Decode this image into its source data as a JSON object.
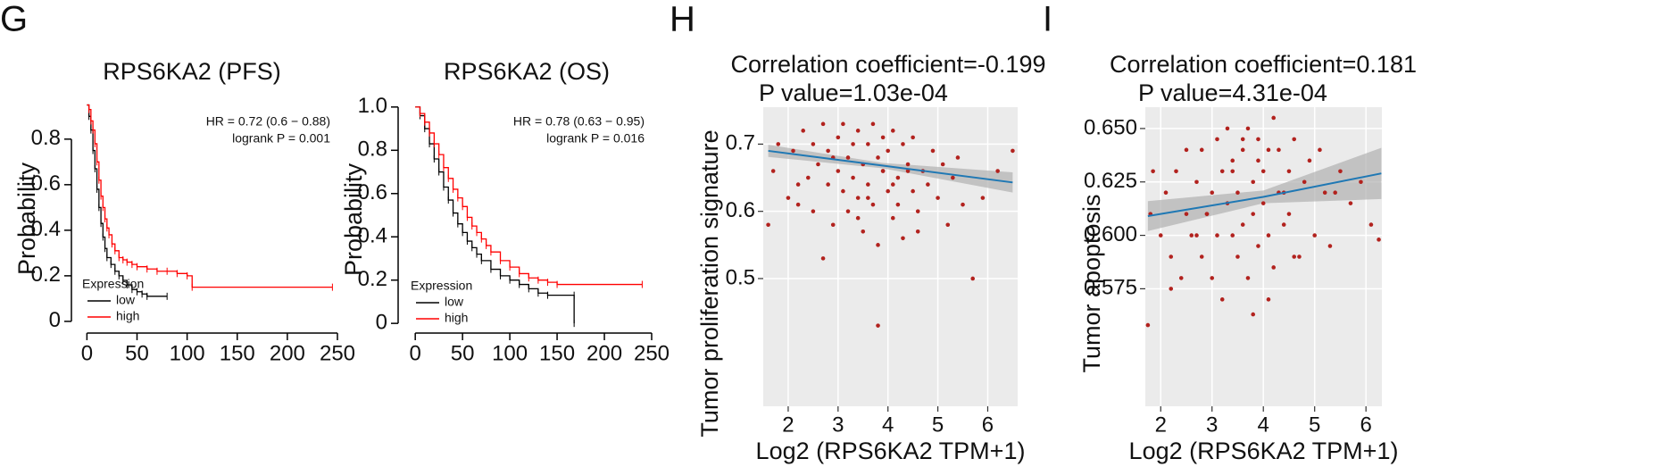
{
  "panel_labels": [
    "G",
    "H",
    "I"
  ],
  "chart_data": [
    {
      "type": "line",
      "title": "RPS6KA2 (PFS)",
      "ylabel": "Probability",
      "annotations": [
        "HR = 0.72 (0.6 − 0.88)",
        "logrank P = 0.001"
      ],
      "legend_title": "Expression",
      "series": [
        {
          "name": "low",
          "color": "#000000",
          "x": [
            0,
            2,
            4,
            6,
            8,
            10,
            12,
            14,
            16,
            18,
            20,
            24,
            28,
            32,
            36,
            40,
            45,
            50,
            55,
            60,
            80
          ],
          "values": [
            0.95,
            0.9,
            0.84,
            0.75,
            0.67,
            0.58,
            0.5,
            0.43,
            0.37,
            0.32,
            0.28,
            0.25,
            0.22,
            0.2,
            0.18,
            0.16,
            0.14,
            0.13,
            0.12,
            0.11,
            0.11
          ]
        },
        {
          "name": "high",
          "color": "#ff0000",
          "x": [
            0,
            2,
            4,
            6,
            8,
            10,
            12,
            14,
            16,
            18,
            20,
            22,
            25,
            28,
            32,
            36,
            40,
            45,
            50,
            60,
            70,
            80,
            90,
            100,
            105,
            245
          ],
          "values": [
            0.95,
            0.93,
            0.88,
            0.84,
            0.78,
            0.7,
            0.62,
            0.55,
            0.5,
            0.45,
            0.41,
            0.38,
            0.34,
            0.31,
            0.28,
            0.27,
            0.26,
            0.25,
            0.24,
            0.23,
            0.22,
            0.22,
            0.21,
            0.2,
            0.15,
            0.15
          ]
        }
      ],
      "xlim": [
        -3,
        250
      ],
      "ylim": [
        -0.02,
        0.96
      ],
      "xticks": [
        0,
        50,
        100,
        150,
        200,
        250
      ],
      "yticks": [
        0,
        0.2,
        0.4,
        0.6,
        0.8
      ]
    },
    {
      "type": "line",
      "title": "RPS6KA2 (OS)",
      "ylabel": "Probability",
      "annotations": [
        "HR = 0.78 (0.63 − 0.95)",
        "logrank P = 0.016"
      ],
      "legend_title": "Expression",
      "series": [
        {
          "name": "low",
          "color": "#000000",
          "x": [
            0,
            5,
            10,
            15,
            20,
            25,
            30,
            35,
            40,
            45,
            50,
            55,
            60,
            65,
            70,
            80,
            90,
            100,
            110,
            120,
            130,
            140,
            168,
            168
          ],
          "values": [
            1,
            0.96,
            0.9,
            0.83,
            0.76,
            0.7,
            0.63,
            0.57,
            0.51,
            0.46,
            0.42,
            0.38,
            0.35,
            0.32,
            0.29,
            0.25,
            0.22,
            0.2,
            0.18,
            0.16,
            0.14,
            0.13,
            0.13,
            0
          ]
        },
        {
          "name": "high",
          "color": "#ff0000",
          "x": [
            0,
            5,
            10,
            15,
            20,
            25,
            30,
            35,
            40,
            45,
            50,
            55,
            60,
            65,
            70,
            75,
            80,
            90,
            100,
            110,
            120,
            130,
            140,
            150,
            240
          ],
          "values": [
            1,
            0.97,
            0.93,
            0.88,
            0.83,
            0.78,
            0.72,
            0.67,
            0.62,
            0.58,
            0.54,
            0.49,
            0.45,
            0.42,
            0.39,
            0.36,
            0.33,
            0.29,
            0.26,
            0.23,
            0.21,
            0.2,
            0.19,
            0.18,
            0.18
          ]
        }
      ],
      "xlim": [
        -3,
        250
      ],
      "ylim": [
        -0.02,
        1.02
      ],
      "xticks": [
        0,
        50,
        100,
        150,
        200,
        250
      ],
      "yticks": [
        0,
        0.2,
        0.4,
        0.6,
        0.8,
        {
          "value": 1,
          "label": "1.0"
        }
      ]
    },
    {
      "type": "scatter",
      "title": "Correlation coefficient=-0.199",
      "subtitle": "P value=1.03e-04",
      "xlabel": "Log2 (RPS6KA2 TPM+1)",
      "ylabel": "Tumor proliferation signature",
      "color": "#b2221e",
      "grid": true,
      "x": [
        1.6,
        1.7,
        1.8,
        2.0,
        2.1,
        2.2,
        2.3,
        2.4,
        2.5,
        2.5,
        2.6,
        2.7,
        2.8,
        2.8,
        2.9,
        3.0,
        3.0,
        3.1,
        3.1,
        3.2,
        3.2,
        3.3,
        3.3,
        3.4,
        3.4,
        3.5,
        3.5,
        3.6,
        3.6,
        3.7,
        3.7,
        3.8,
        3.8,
        3.9,
        3.9,
        4.0,
        4.0,
        4.1,
        4.1,
        4.2,
        4.2,
        4.3,
        4.3,
        4.4,
        4.5,
        4.5,
        4.6,
        4.7,
        4.8,
        4.9,
        5.0,
        5.1,
        5.2,
        5.3,
        5.5,
        5.7,
        5.9,
        6.2,
        6.5,
        2.2,
        2.9,
        3.4,
        3.8,
        4.4,
        2.7,
        3.6,
        4.6,
        5.4,
        3.9,
        4.1
      ],
      "values": [
        0.58,
        0.66,
        0.7,
        0.62,
        0.69,
        0.61,
        0.72,
        0.65,
        0.7,
        0.6,
        0.67,
        0.73,
        0.64,
        0.69,
        0.58,
        0.71,
        0.66,
        0.63,
        0.73,
        0.68,
        0.6,
        0.7,
        0.65,
        0.72,
        0.62,
        0.67,
        0.57,
        0.7,
        0.64,
        0.73,
        0.61,
        0.68,
        0.55,
        0.66,
        0.71,
        0.63,
        0.69,
        0.59,
        0.72,
        0.65,
        0.61,
        0.7,
        0.56,
        0.67,
        0.63,
        0.71,
        0.6,
        0.66,
        0.64,
        0.69,
        0.62,
        0.67,
        0.58,
        0.65,
        0.61,
        0.5,
        0.62,
        0.66,
        0.69,
        0.64,
        0.68,
        0.59,
        0.43,
        0.66,
        0.53,
        0.62,
        0.57,
        0.68,
        0.66,
        0.64
      ],
      "fit": {
        "color": "#1f78b4",
        "x": [
          1.6,
          3.9,
          6.5
        ],
        "values": [
          0.69,
          0.668,
          0.643
        ],
        "lower": [
          0.681,
          0.664,
          0.628
        ],
        "upper": [
          0.699,
          0.672,
          0.658
        ]
      },
      "xlim": [
        1.5,
        6.6
      ],
      "ylim": [
        0.31,
        0.755
      ],
      "xticks": [
        2,
        3,
        4,
        5,
        6
      ],
      "yticks": [
        0.5,
        0.6,
        0.7
      ]
    },
    {
      "type": "scatter",
      "title": "Correlation coefficient=0.181",
      "subtitle": "P value=4.31e-04",
      "xlabel": "Log2 (RPS6KA2 TPM+1)",
      "ylabel": "Tumor apoptosis",
      "color": "#b2221e",
      "grid": true,
      "x": [
        1.75,
        1.8,
        1.85,
        2.0,
        2.1,
        2.2,
        2.3,
        2.4,
        2.5,
        2.5,
        2.6,
        2.7,
        2.8,
        2.8,
        2.9,
        3.0,
        3.0,
        3.1,
        3.1,
        3.2,
        3.2,
        3.3,
        3.3,
        3.4,
        3.4,
        3.5,
        3.5,
        3.6,
        3.6,
        3.7,
        3.7,
        3.8,
        3.8,
        3.9,
        3.9,
        4.0,
        4.0,
        4.1,
        4.1,
        4.2,
        4.2,
        4.3,
        4.3,
        4.4,
        4.5,
        4.5,
        4.6,
        4.7,
        4.8,
        4.9,
        5.0,
        5.1,
        5.2,
        5.3,
        5.5,
        5.7,
        5.9,
        6.1,
        6.25,
        2.2,
        2.9,
        3.4,
        3.8,
        4.4,
        2.7,
        3.6,
        4.6,
        5.4,
        3.9,
        4.1
      ],
      "values": [
        0.558,
        0.61,
        0.63,
        0.6,
        0.62,
        0.59,
        0.63,
        0.58,
        0.61,
        0.64,
        0.6,
        0.625,
        0.59,
        0.64,
        0.61,
        0.62,
        0.58,
        0.645,
        0.6,
        0.63,
        0.57,
        0.615,
        0.65,
        0.6,
        0.635,
        0.59,
        0.62,
        0.64,
        0.605,
        0.65,
        0.58,
        0.625,
        0.61,
        0.645,
        0.595,
        0.63,
        0.615,
        0.64,
        0.6,
        0.655,
        0.585,
        0.62,
        0.64,
        0.605,
        0.63,
        0.61,
        0.645,
        0.59,
        0.625,
        0.635,
        0.6,
        0.64,
        0.62,
        0.595,
        0.63,
        0.615,
        0.625,
        0.605,
        0.598,
        0.575,
        0.61,
        0.63,
        0.563,
        0.62,
        0.6,
        0.645,
        0.59,
        0.62,
        0.635,
        0.57
      ],
      "fit": {
        "color": "#1f78b4",
        "x": [
          1.75,
          4,
          6.3
        ],
        "values": [
          0.609,
          0.618,
          0.629
        ],
        "lower": [
          0.602,
          0.615,
          0.617
        ],
        "upper": [
          0.616,
          0.621,
          0.641
        ]
      },
      "xlim": [
        1.7,
        6.31
      ],
      "ylim": [
        0.52,
        0.66
      ],
      "xticks": [
        2,
        3,
        4,
        5,
        6
      ],
      "yticks": [
        0.575,
        {
          "value": 0.6,
          "label": "0.600"
        },
        0.625,
        {
          "value": 0.65,
          "label": "0.650"
        }
      ]
    }
  ]
}
